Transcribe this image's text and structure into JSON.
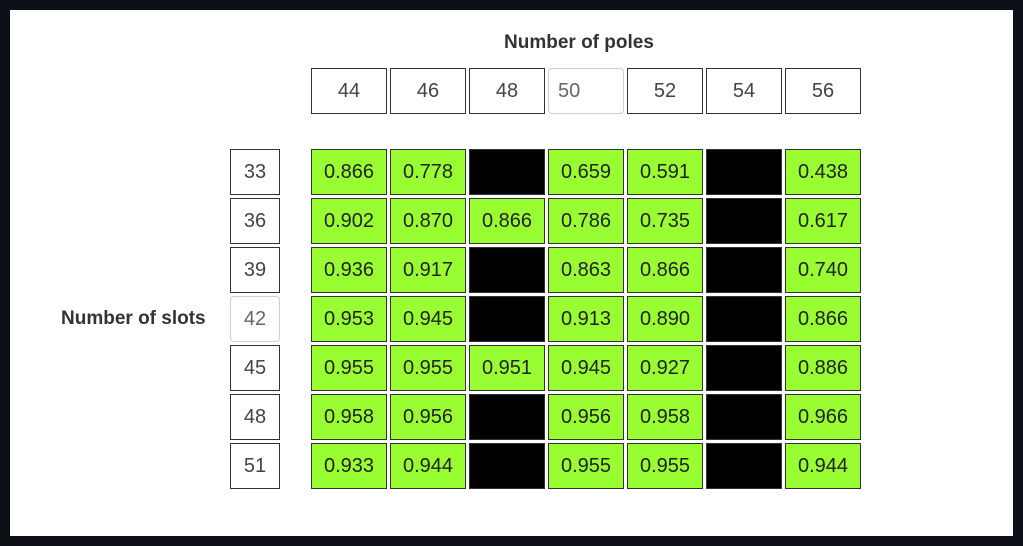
{
  "titles": {
    "poles": "Number of poles",
    "slots": "Number of slots"
  },
  "poles": [
    {
      "value": "44",
      "active": false
    },
    {
      "value": "46",
      "active": false
    },
    {
      "value": "48",
      "active": false
    },
    {
      "value": "50",
      "active": true
    },
    {
      "value": "52",
      "active": false
    },
    {
      "value": "54",
      "active": false
    },
    {
      "value": "56",
      "active": false
    }
  ],
  "slots": [
    {
      "value": "33",
      "active": false
    },
    {
      "value": "36",
      "active": false
    },
    {
      "value": "39",
      "active": false
    },
    {
      "value": "42",
      "active": true
    },
    {
      "value": "45",
      "active": false
    },
    {
      "value": "48",
      "active": false
    },
    {
      "value": "51",
      "active": false
    }
  ],
  "table": [
    [
      "0.866",
      "0.778",
      null,
      "0.659",
      "0.591",
      null,
      "0.438"
    ],
    [
      "0.902",
      "0.870",
      "0.866",
      "0.786",
      "0.735",
      null,
      "0.617"
    ],
    [
      "0.936",
      "0.917",
      null,
      "0.863",
      "0.866",
      null,
      "0.740"
    ],
    [
      "0.953",
      "0.945",
      null,
      "0.913",
      "0.890",
      null,
      "0.866"
    ],
    [
      "0.955",
      "0.955",
      "0.951",
      "0.945",
      "0.927",
      null,
      "0.886"
    ],
    [
      "0.958",
      "0.956",
      null,
      "0.956",
      "0.958",
      null,
      "0.966"
    ],
    [
      "0.933",
      "0.944",
      null,
      "0.955",
      "0.955",
      null,
      "0.944"
    ]
  ],
  "colors": {
    "valid": "#99ff33",
    "invalid": "#000000"
  }
}
